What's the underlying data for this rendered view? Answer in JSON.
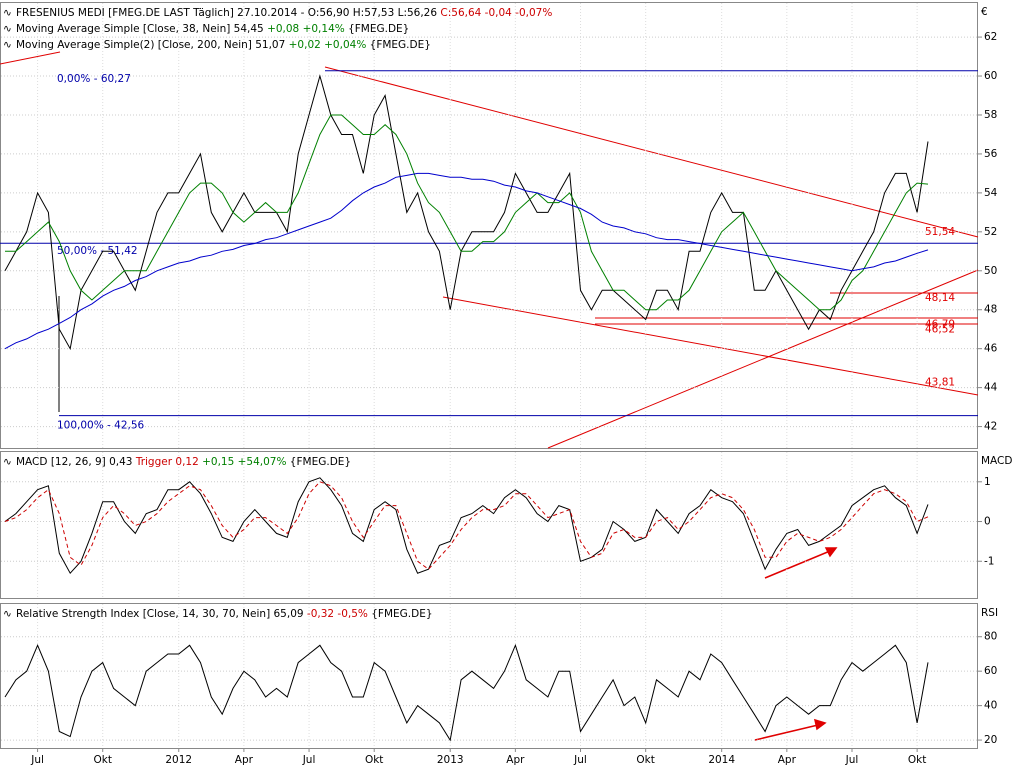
{
  "chart_data": [
    {
      "type": "line",
      "y_label": "€",
      "ylim": [
        40.9,
        63.75
      ],
      "yticks": [
        42,
        44,
        46,
        48,
        50,
        52,
        54,
        56,
        58,
        60,
        62
      ],
      "grid": true,
      "series": [
        {
          "name": "FRESENIUS MEDI",
          "color": "#000000",
          "details": [
            {
              "text": " [FMEG.DE LAST Täglich] 27.10.2014 - O:56,90 H:57,53 L:56,26 ",
              "color": "#000000"
            },
            {
              "text": "C:56,64 -0,04 -0,07%",
              "color": "#cc0000"
            }
          ],
          "values": [
            50,
            51,
            52,
            54,
            53,
            47,
            46,
            49,
            50,
            51,
            51,
            50,
            49,
            51,
            53,
            54,
            54,
            55,
            56,
            53,
            52,
            53,
            54,
            53,
            53,
            53,
            52,
            56,
            58,
            60,
            58,
            57,
            57,
            55,
            58,
            59,
            56,
            53,
            54,
            52,
            51,
            48,
            51,
            52,
            52,
            52,
            53,
            55,
            54,
            53,
            53,
            54,
            55,
            49,
            48,
            49,
            49,
            48.5,
            48,
            47.5,
            49,
            49,
            48,
            51,
            51,
            53,
            54,
            53,
            53,
            49,
            49,
            50,
            49,
            48,
            47,
            48,
            47.5,
            49,
            50,
            51,
            52,
            54,
            55,
            55,
            53,
            56.64
          ]
        },
        {
          "name": "Moving Average Simple",
          "color": "#008000",
          "details": [
            {
              "text": " [Close, 38, Nein] 54,45 ",
              "color": "#000000"
            },
            {
              "text": "+0,08 +0,14%",
              "color": "#008000"
            },
            {
              "text": " {FMEG.DE}",
              "color": "#000000"
            }
          ],
          "values": [
            51,
            51,
            51.5,
            52,
            52.5,
            51.5,
            50,
            49,
            48.5,
            49,
            49.5,
            50,
            50,
            50,
            51,
            52,
            53,
            54,
            54.5,
            54.5,
            54,
            53,
            52.5,
            53,
            53.5,
            53,
            53,
            54,
            55.5,
            57,
            58,
            58,
            57.5,
            57,
            57,
            57.5,
            57,
            56,
            54.5,
            53.5,
            53,
            52,
            51,
            51,
            51.5,
            51.5,
            52,
            53,
            53.5,
            54,
            53.5,
            53.5,
            54,
            53,
            51,
            50,
            49,
            49,
            48.5,
            48,
            48,
            48.5,
            48.5,
            49,
            50,
            51,
            52,
            52.5,
            53,
            52,
            51,
            50,
            49.5,
            49,
            48.5,
            48,
            48,
            48.5,
            49.5,
            50,
            51,
            52,
            53,
            54,
            54.5,
            54.45
          ]
        },
        {
          "name": "Moving Average Simple(2)",
          "color": "#0000cc",
          "details": [
            {
              "text": " [Close, 200, Nein] 51,07 ",
              "color": "#000000"
            },
            {
              "text": "+0,02 +0,04%",
              "color": "#008000"
            },
            {
              "text": " {FMEG.DE}",
              "color": "#000000"
            }
          ],
          "values": [
            46,
            46.3,
            46.5,
            46.8,
            47,
            47.3,
            47.6,
            48,
            48.3,
            48.7,
            49,
            49.2,
            49.5,
            49.7,
            50,
            50.2,
            50.4,
            50.5,
            50.7,
            50.8,
            51,
            51.1,
            51.3,
            51.4,
            51.6,
            51.7,
            51.9,
            52.1,
            52.3,
            52.5,
            52.7,
            53.1,
            53.6,
            54,
            54.3,
            54.5,
            54.8,
            54.9,
            55,
            55,
            54.9,
            54.8,
            54.8,
            54.7,
            54.7,
            54.6,
            54.4,
            54.3,
            54.1,
            54,
            53.8,
            53.6,
            53.4,
            53.2,
            52.9,
            52.5,
            52.3,
            52.2,
            52,
            51.9,
            51.7,
            51.6,
            51.6,
            51.5,
            51.4,
            51.3,
            51.2,
            51.1,
            51,
            50.9,
            50.8,
            50.7,
            50.6,
            50.5,
            50.4,
            50.3,
            50.2,
            50.1,
            50,
            50.1,
            50.2,
            50.4,
            50.5,
            50.7,
            50.9,
            51.07
          ]
        }
      ],
      "fib_levels": [
        {
          "value": 60.27,
          "label": "0,00% - 60,27"
        },
        {
          "value": 51.415,
          "label": "50,00% - 51,42"
        },
        {
          "value": 42.56,
          "label": "100,00% - 42,56"
        }
      ],
      "annotations": [
        {
          "value": 51.54,
          "label": "51,54"
        },
        {
          "value": 48.14,
          "label": "48,14"
        },
        {
          "value": 46.79,
          "label": "46,79"
        },
        {
          "value": 46.52,
          "label": "46,52"
        },
        {
          "value": 43.81,
          "label": "43,81"
        }
      ]
    },
    {
      "type": "line",
      "y_label": "MACD",
      "ylim": [
        -1.925,
        1.75
      ],
      "yticks": [
        -1,
        0,
        1
      ],
      "grid": true,
      "series": [
        {
          "name": "MACD",
          "color": "#000000",
          "details": [
            {
              "text": " [12, 26, 9] 0,43 ",
              "color": "#000000"
            }
          ],
          "values": [
            0,
            0.2,
            0.5,
            0.8,
            0.9,
            -0.8,
            -1.3,
            -1,
            -0.3,
            0.5,
            0.5,
            0,
            -0.3,
            0.2,
            0.3,
            0.8,
            0.8,
            1,
            0.7,
            0.2,
            -0.4,
            -0.5,
            0,
            0.3,
            0,
            -0.3,
            -0.4,
            0.5,
            1,
            1.1,
            0.8,
            0.4,
            -0.3,
            -0.5,
            0.3,
            0.5,
            0.3,
            -0.7,
            -1.3,
            -1.2,
            -0.6,
            -0.5,
            0.1,
            0.2,
            0.4,
            0.2,
            0.6,
            0.8,
            0.6,
            0.2,
            0,
            0.4,
            0.3,
            -1,
            -0.9,
            -0.7,
            0,
            -0.2,
            -0.5,
            -0.4,
            0.3,
            0,
            -0.3,
            0.2,
            0.4,
            0.8,
            0.6,
            0.5,
            0.2,
            -0.5,
            -1.2,
            -0.7,
            -0.3,
            -0.2,
            -0.6,
            -0.5,
            -0.3,
            -0.1,
            0.4,
            0.6,
            0.8,
            0.9,
            0.6,
            0.4,
            -0.3,
            0.43
          ]
        },
        {
          "name": "Trigger",
          "color": "#cc0000",
          "dashed": true,
          "details": [
            {
              "text": " 0,12 ",
              "color": "#cc0000"
            },
            {
              "text": "+0,15 +54,07%",
              "color": "#008000"
            },
            {
              "text": " {FMEG.DE}",
              "color": "#000000"
            }
          ],
          "values": [
            0,
            0.1,
            0.3,
            0.6,
            0.8,
            0.2,
            -0.9,
            -1.1,
            -0.6,
            0.1,
            0.4,
            0.2,
            -0.1,
            0,
            0.2,
            0.5,
            0.7,
            0.9,
            0.8,
            0.4,
            -0.1,
            -0.4,
            -0.2,
            0.1,
            0.1,
            -0.1,
            -0.3,
            0.1,
            0.7,
            1,
            0.9,
            0.6,
            0,
            -0.4,
            0,
            0.4,
            0.4,
            -0.3,
            -1,
            -1.2,
            -0.9,
            -0.6,
            -0.2,
            0.1,
            0.3,
            0.3,
            0.4,
            0.7,
            0.7,
            0.4,
            0.1,
            0.2,
            0.3,
            -0.5,
            -0.9,
            -0.8,
            -0.3,
            -0.2,
            -0.4,
            -0.4,
            0,
            0.1,
            -0.2,
            0,
            0.3,
            0.6,
            0.7,
            0.6,
            0.3,
            -0.2,
            -0.9,
            -0.9,
            -0.5,
            -0.3,
            -0.4,
            -0.5,
            -0.4,
            -0.2,
            0.1,
            0.4,
            0.7,
            0.8,
            0.7,
            0.5,
            0,
            0.12
          ]
        }
      ]
    },
    {
      "type": "line",
      "y_label": "RSI",
      "ylim": [
        15.4,
        99
      ],
      "yticks": [
        20,
        40,
        60,
        80
      ],
      "grid": true,
      "categories": [
        null,
        null,
        null,
        "Jul",
        null,
        null,
        null,
        null,
        null,
        "Okt",
        null,
        null,
        null,
        null,
        null,
        null,
        "2012",
        null,
        null,
        null,
        null,
        null,
        "Apr",
        null,
        null,
        null,
        null,
        null,
        "Jul",
        null,
        null,
        null,
        null,
        null,
        "Okt",
        null,
        null,
        null,
        null,
        null,
        null,
        "2013",
        null,
        null,
        null,
        null,
        null,
        "Apr",
        null,
        null,
        null,
        null,
        null,
        "Jul",
        null,
        null,
        null,
        null,
        null,
        "Okt",
        null,
        null,
        null,
        null,
        null,
        null,
        "2014",
        null,
        null,
        null,
        null,
        null,
        "Apr",
        null,
        null,
        null,
        null,
        null,
        "Jul",
        null,
        null,
        null,
        null,
        null,
        "Okt",
        null
      ],
      "series": [
        {
          "name": "Relative Strength Index",
          "color": "#000000",
          "details": [
            {
              "text": " [Close, 14, 30, 70, Nein] 65,09 ",
              "color": "#000000"
            },
            {
              "text": "-0,32 -0,5%",
              "color": "#cc0000"
            },
            {
              "text": " {FMEG.DE}",
              "color": "#000000"
            }
          ],
          "values": [
            45,
            55,
            60,
            75,
            60,
            25,
            22,
            45,
            60,
            65,
            50,
            45,
            40,
            60,
            65,
            70,
            70,
            75,
            65,
            45,
            35,
            50,
            60,
            55,
            45,
            50,
            45,
            65,
            70,
            75,
            65,
            60,
            45,
            45,
            65,
            60,
            45,
            30,
            40,
            35,
            30,
            20,
            55,
            60,
            55,
            50,
            60,
            75,
            55,
            50,
            45,
            60,
            60,
            25,
            35,
            45,
            55,
            40,
            45,
            30,
            55,
            50,
            45,
            60,
            55,
            70,
            65,
            55,
            45,
            35,
            25,
            40,
            45,
            40,
            35,
            40,
            40,
            55,
            65,
            60,
            65,
            70,
            75,
            65,
            30,
            65.09
          ]
        }
      ]
    }
  ]
}
